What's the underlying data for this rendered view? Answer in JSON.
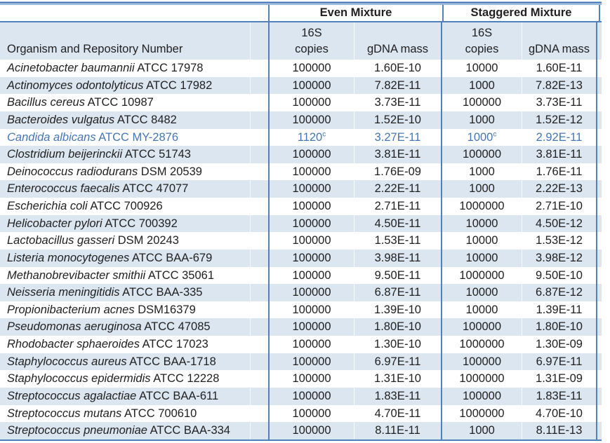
{
  "table": {
    "headers": {
      "even_group": "Even Mixture",
      "staggered_group": "Staggered Mixture",
      "organism_col": "Organism and Repository Number",
      "copies_line1": "16S",
      "copies_line2": "copies",
      "gdna_col": "gDNA mass"
    },
    "colors": {
      "row_shade": "#dce6f1",
      "border_blue": "#4f81bd",
      "highlight_text": "#4576b5",
      "body_text": "#212121"
    },
    "rows": [
      {
        "organism_italic": "Acinetobacter baumannii",
        "organism_rest": "ATCC 17978",
        "even_copies": "100000",
        "even_gdna": "1.60E-10",
        "stag_copies": "10000",
        "stag_gdna": "1.60E-11"
      },
      {
        "organism_italic": "Actinomyces odontolyticus",
        "organism_rest": "ATCC 17982",
        "even_copies": "100000",
        "even_gdna": "7.82E-11",
        "stag_copies": "1000",
        "stag_gdna": "7.82E-13"
      },
      {
        "organism_italic": "Bacillus cereus",
        "organism_rest": "ATCC 10987",
        "even_copies": "100000",
        "even_gdna": "3.73E-11",
        "stag_copies": "100000",
        "stag_gdna": "3.73E-11"
      },
      {
        "organism_italic": "Bacteroides vulgatus",
        "organism_rest": "ATCC 8482",
        "even_copies": "100000",
        "even_gdna": "1.52E-10",
        "stag_copies": "1000",
        "stag_gdna": "1.52E-12"
      },
      {
        "organism_italic": "Candida albicans",
        "organism_rest": "ATCC MY-2876",
        "even_copies": "1120",
        "even_copies_sup": "c",
        "even_gdna": "3.27E-11",
        "stag_copies": "1000",
        "stag_copies_sup": "c",
        "stag_gdna": "2.92E-11",
        "highlight": true
      },
      {
        "organism_italic": "Clostridium beijerinckii",
        "organism_rest": "ATCC 51743",
        "even_copies": "100000",
        "even_gdna": "3.81E-11",
        "stag_copies": "100000",
        "stag_gdna": "3.81E-11"
      },
      {
        "organism_italic": "Deinococcus radiodurans",
        "organism_rest": "DSM 20539",
        "even_copies": "100000",
        "even_gdna": "1.76E-09",
        "stag_copies": "1000",
        "stag_gdna": "1.76E-11"
      },
      {
        "organism_italic": "Enterococcus faecalis",
        "organism_rest": "ATCC 47077",
        "even_copies": "100000",
        "even_gdna": "2.22E-11",
        "stag_copies": "1000",
        "stag_gdna": "2.22E-13"
      },
      {
        "organism_italic": "Escherichia coli",
        "organism_rest": "ATCC 700926",
        "even_copies": "100000",
        "even_gdna": "2.71E-11",
        "stag_copies": "1000000",
        "stag_gdna": "2.71E-10"
      },
      {
        "organism_italic": "Helicobacter pylori",
        "organism_rest": "ATCC 700392",
        "even_copies": "100000",
        "even_gdna": "4.50E-11",
        "stag_copies": "10000",
        "stag_gdna": "4.50E-12"
      },
      {
        "organism_italic": "Lactobacillus gasseri",
        "organism_rest": "DSM 20243",
        "even_copies": "100000",
        "even_gdna": "1.53E-11",
        "stag_copies": "10000",
        "stag_gdna": "1.53E-12"
      },
      {
        "organism_italic": "Listeria monocytogenes",
        "organism_rest": "ATCC BAA-679",
        "even_copies": "100000",
        "even_gdna": "3.98E-11",
        "stag_copies": "10000",
        "stag_gdna": "3.98E-12"
      },
      {
        "organism_italic": "Methanobrevibacter smithii",
        "organism_rest": "ATCC 35061",
        "even_copies": "100000",
        "even_gdna": "9.50E-11",
        "stag_copies": "1000000",
        "stag_gdna": "9.50E-10"
      },
      {
        "organism_italic": "Neisseria meningitidis",
        "organism_rest": "ATCC BAA-335",
        "even_copies": "100000",
        "even_gdna": "6.87E-11",
        "stag_copies": "10000",
        "stag_gdna": "6.87E-12"
      },
      {
        "organism_italic": "Propionibacterium acnes",
        "organism_rest": "DSM16379",
        "even_copies": "100000",
        "even_gdna": "1.39E-10",
        "stag_copies": "10000",
        "stag_gdna": "1.39E-11"
      },
      {
        "organism_italic": "Pseudomonas aeruginosa",
        "organism_rest": "ATCC 47085",
        "even_copies": "100000",
        "even_gdna": "1.80E-10",
        "stag_copies": "100000",
        "stag_gdna": "1.80E-10"
      },
      {
        "organism_italic": "Rhodobacter sphaeroides",
        "organism_rest": "ATCC 17023",
        "even_copies": "100000",
        "even_gdna": "1.30E-10",
        "stag_copies": "1000000",
        "stag_gdna": "1.30E-09"
      },
      {
        "organism_italic": "Staphylococcus aureus",
        "organism_rest": "ATCC BAA-1718",
        "even_copies": "100000",
        "even_gdna": "6.97E-11",
        "stag_copies": "100000",
        "stag_gdna": "6.97E-11"
      },
      {
        "organism_italic": "Staphylococcus epidermidis",
        "organism_rest": "ATCC 12228",
        "even_copies": "100000",
        "even_gdna": "1.31E-10",
        "stag_copies": "1000000",
        "stag_gdna": "1.31E-09"
      },
      {
        "organism_italic": "Streptococcus agalactiae",
        "organism_rest": "ATCC BAA-611",
        "even_copies": "100000",
        "even_gdna": "1.83E-11",
        "stag_copies": "100000",
        "stag_gdna": "1.83E-11"
      },
      {
        "organism_italic": "Streptococcus mutans",
        "organism_rest": "ATCC 700610",
        "even_copies": "100000",
        "even_gdna": "4.70E-11",
        "stag_copies": "1000000",
        "stag_gdna": "4.70E-10"
      },
      {
        "organism_italic": "Streptococcus pneumoniae",
        "organism_rest": "ATCC BAA-334",
        "even_copies": "100000",
        "even_gdna": "8.11E-11",
        "stag_copies": "1000",
        "stag_gdna": "8.11E-13"
      }
    ]
  }
}
